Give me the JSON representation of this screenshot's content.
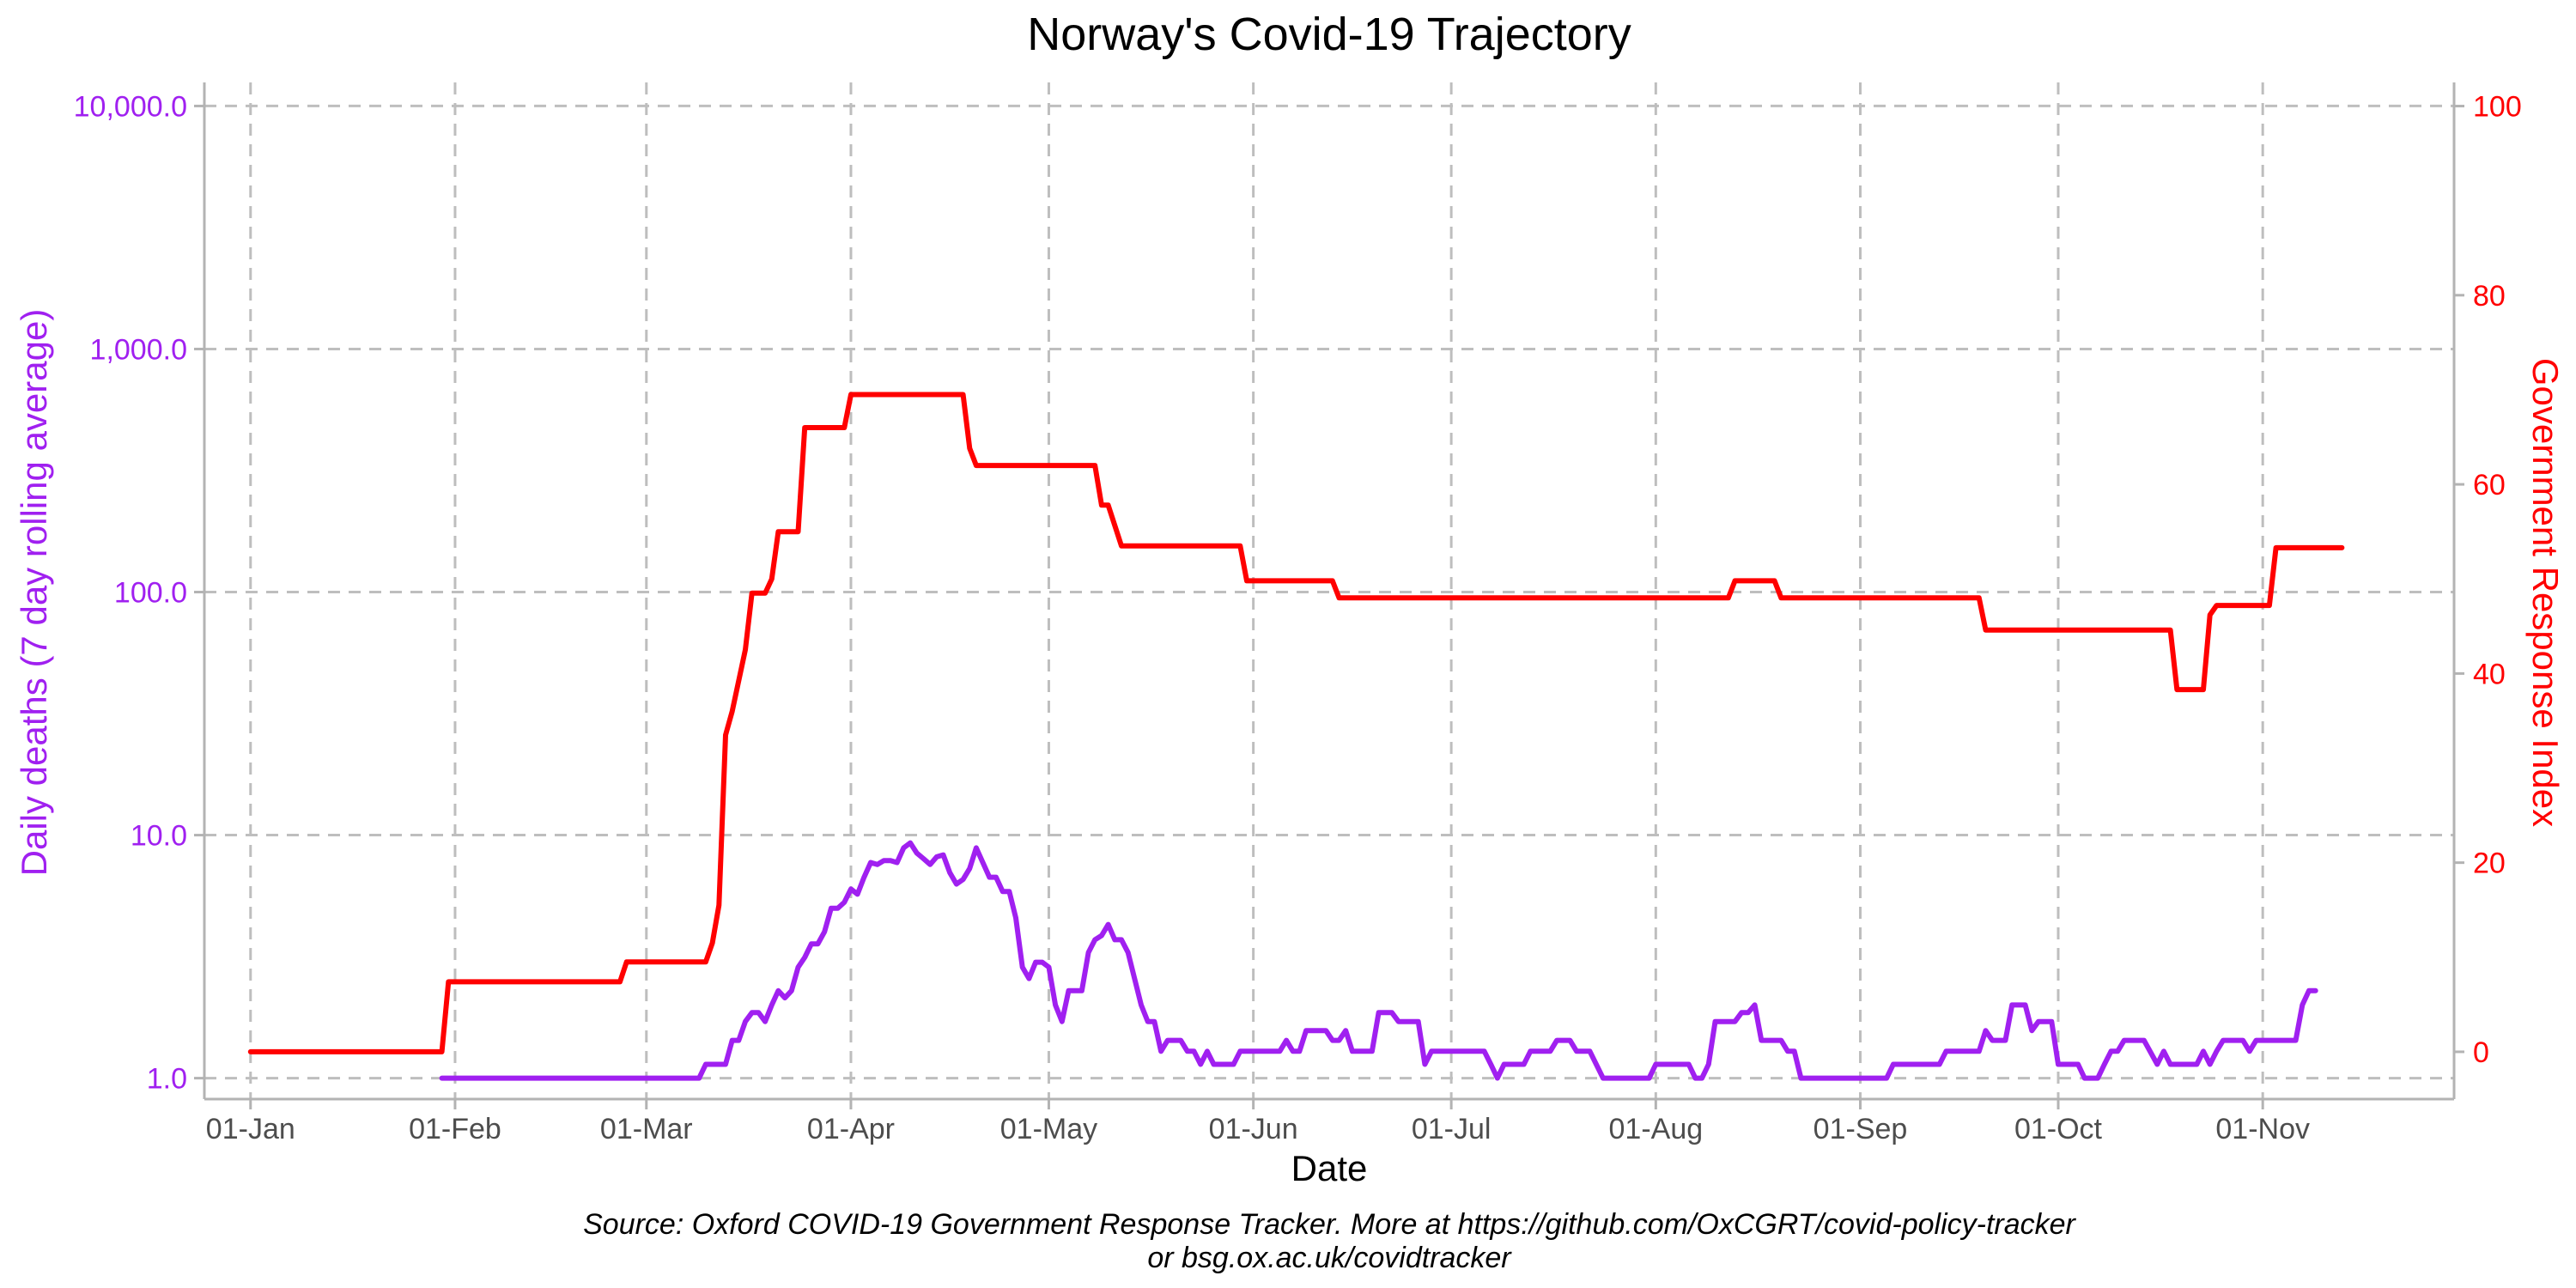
{
  "chart_data": {
    "type": "line",
    "title": "Norway's Covid-19 Trajectory",
    "xlabel": "Date",
    "ylabel_left": "Daily deaths (7 day rolling average)",
    "ylabel_right": "Government Response Index",
    "caption_line1": "Source: Oxford COVID-19 Government Response Tracker. More at https://github.com/OxCGRT/covid-policy-tracker",
    "caption_line2": "or bsg.ox.ac.uk/covidtracker",
    "x_ticks": [
      "01-Jan",
      "01-Feb",
      "01-Mar",
      "01-Apr",
      "01-May",
      "01-Jun",
      "01-Jul",
      "01-Aug",
      "01-Sep",
      "01-Oct",
      "01-Nov"
    ],
    "xlim": [
      "2019-12-25",
      "2020-11-30"
    ],
    "y_left_scale": "log10",
    "y_left_lim": [
      0.82,
      12500
    ],
    "y_left_ticks": [
      1,
      10,
      100,
      1000,
      10000
    ],
    "y_left_tick_labels": [
      "1.0",
      "10.0",
      "100.0",
      "1,000.0",
      "10,000.0"
    ],
    "y_right_lim": [
      -5,
      102.5
    ],
    "y_right_ticks": [
      0,
      20,
      40,
      60,
      80,
      100
    ],
    "y_right_tick_labels": [
      "0",
      "20",
      "40",
      "60",
      "80",
      "100"
    ],
    "grid": true,
    "colors": {
      "deaths": "#a020f0",
      "index": "#ff0000",
      "grid": "#bebebe",
      "axis": "#b3b3b3"
    },
    "series": [
      {
        "axis": "right",
        "color": "#ff0000",
        "points": [
          [
            "2020-01-01",
            0
          ],
          [
            "2020-01-30",
            0
          ],
          [
            "2020-01-31",
            7.4
          ],
          [
            "2020-02-26",
            7.4
          ],
          [
            "2020-02-27",
            9.5
          ],
          [
            "2020-03-10",
            9.5
          ],
          [
            "2020-03-11",
            11.5
          ],
          [
            "2020-03-12",
            15.5
          ],
          [
            "2020-03-13",
            33.5
          ],
          [
            "2020-03-14",
            36
          ],
          [
            "2020-03-16",
            42.5
          ],
          [
            "2020-03-17",
            48.5
          ],
          [
            "2020-03-19",
            48.5
          ],
          [
            "2020-03-20",
            50
          ],
          [
            "2020-03-21",
            55
          ],
          [
            "2020-03-24",
            55
          ],
          [
            "2020-03-25",
            66
          ],
          [
            "2020-03-31",
            66
          ],
          [
            "2020-04-01",
            69.5
          ],
          [
            "2020-04-18",
            69.5
          ],
          [
            "2020-04-19",
            63.8
          ],
          [
            "2020-04-20",
            62
          ],
          [
            "2020-05-08",
            62
          ],
          [
            "2020-05-09",
            57.8
          ],
          [
            "2020-05-10",
            57.8
          ],
          [
            "2020-05-12",
            53.5
          ],
          [
            "2020-05-30",
            53.5
          ],
          [
            "2020-05-31",
            49.8
          ],
          [
            "2020-06-13",
            49.8
          ],
          [
            "2020-06-14",
            48
          ],
          [
            "2020-08-12",
            48
          ],
          [
            "2020-08-13",
            49.8
          ],
          [
            "2020-08-19",
            49.8
          ],
          [
            "2020-08-20",
            48
          ],
          [
            "2020-09-19",
            48
          ],
          [
            "2020-09-20",
            44.6
          ],
          [
            "2020-10-18",
            44.6
          ],
          [
            "2020-10-19",
            38.3
          ],
          [
            "2020-10-23",
            38.3
          ],
          [
            "2020-10-24",
            46.2
          ],
          [
            "2020-10-25",
            47.2
          ],
          [
            "2020-11-02",
            47.2
          ],
          [
            "2020-11-03",
            53.3
          ],
          [
            "2020-11-13",
            53.3
          ]
        ]
      },
      {
        "axis": "left",
        "color": "#a020f0",
        "points": [
          [
            "2020-01-30",
            1.0
          ],
          [
            "2020-03-09",
            1.0
          ],
          [
            "2020-03-10",
            1.14
          ],
          [
            "2020-03-13",
            1.14
          ],
          [
            "2020-03-14",
            1.43
          ],
          [
            "2020-03-15",
            1.43
          ],
          [
            "2020-03-16",
            1.71
          ],
          [
            "2020-03-17",
            1.86
          ],
          [
            "2020-03-18",
            1.86
          ],
          [
            "2020-03-19",
            1.71
          ],
          [
            "2020-03-20",
            2.0
          ],
          [
            "2020-03-21",
            2.29
          ],
          [
            "2020-03-22",
            2.14
          ],
          [
            "2020-03-23",
            2.29
          ],
          [
            "2020-03-24",
            2.86
          ],
          [
            "2020-03-25",
            3.14
          ],
          [
            "2020-03-26",
            3.57
          ],
          [
            "2020-03-27",
            3.57
          ],
          [
            "2020-03-28",
            4.0
          ],
          [
            "2020-03-29",
            5.0
          ],
          [
            "2020-03-30",
            5.0
          ],
          [
            "2020-03-31",
            5.29
          ],
          [
            "2020-04-01",
            6.0
          ],
          [
            "2020-04-02",
            5.71
          ],
          [
            "2020-04-03",
            6.71
          ],
          [
            "2020-04-04",
            7.71
          ],
          [
            "2020-04-05",
            7.57
          ],
          [
            "2020-04-06",
            7.86
          ],
          [
            "2020-04-07",
            7.86
          ],
          [
            "2020-04-08",
            7.71
          ],
          [
            "2020-04-09",
            8.86
          ],
          [
            "2020-04-10",
            9.29
          ],
          [
            "2020-04-11",
            8.43
          ],
          [
            "2020-04-12",
            8.0
          ],
          [
            "2020-04-13",
            7.57
          ],
          [
            "2020-04-14",
            8.14
          ],
          [
            "2020-04-15",
            8.29
          ],
          [
            "2020-04-16",
            7.0
          ],
          [
            "2020-04-17",
            6.29
          ],
          [
            "2020-04-18",
            6.57
          ],
          [
            "2020-04-19",
            7.29
          ],
          [
            "2020-04-20",
            8.86
          ],
          [
            "2020-04-21",
            7.71
          ],
          [
            "2020-04-22",
            6.71
          ],
          [
            "2020-04-23",
            6.71
          ],
          [
            "2020-04-24",
            5.86
          ],
          [
            "2020-04-25",
            5.86
          ],
          [
            "2020-04-26",
            4.57
          ],
          [
            "2020-04-27",
            2.86
          ],
          [
            "2020-04-28",
            2.57
          ],
          [
            "2020-04-29",
            3.0
          ],
          [
            "2020-04-30",
            3.0
          ],
          [
            "2020-05-01",
            2.86
          ],
          [
            "2020-05-02",
            2.0
          ],
          [
            "2020-05-03",
            1.71
          ],
          [
            "2020-05-04",
            2.29
          ],
          [
            "2020-05-05",
            2.29
          ],
          [
            "2020-05-06",
            2.29
          ],
          [
            "2020-05-07",
            3.29
          ],
          [
            "2020-05-08",
            3.71
          ],
          [
            "2020-05-09",
            3.86
          ],
          [
            "2020-05-10",
            4.29
          ],
          [
            "2020-05-11",
            3.71
          ],
          [
            "2020-05-12",
            3.71
          ],
          [
            "2020-05-13",
            3.29
          ],
          [
            "2020-05-14",
            2.57
          ],
          [
            "2020-05-15",
            2.0
          ],
          [
            "2020-05-16",
            1.71
          ],
          [
            "2020-05-17",
            1.71
          ],
          [
            "2020-05-18",
            1.29
          ],
          [
            "2020-05-19",
            1.43
          ],
          [
            "2020-05-20",
            1.43
          ],
          [
            "2020-05-21",
            1.43
          ],
          [
            "2020-05-22",
            1.29
          ],
          [
            "2020-05-23",
            1.29
          ],
          [
            "2020-05-24",
            1.14
          ],
          [
            "2020-05-25",
            1.29
          ],
          [
            "2020-05-26",
            1.14
          ],
          [
            "2020-05-27",
            1.14
          ],
          [
            "2020-05-28",
            1.14
          ],
          [
            "2020-05-29",
            1.14
          ],
          [
            "2020-05-30",
            1.29
          ],
          [
            "2020-05-31",
            1.29
          ],
          [
            "2020-06-05",
            1.29
          ],
          [
            "2020-06-06",
            1.43
          ],
          [
            "2020-06-07",
            1.29
          ],
          [
            "2020-06-08",
            1.29
          ],
          [
            "2020-06-09",
            1.57
          ],
          [
            "2020-06-12",
            1.57
          ],
          [
            "2020-06-13",
            1.43
          ],
          [
            "2020-06-14",
            1.43
          ],
          [
            "2020-06-15",
            1.57
          ],
          [
            "2020-06-16",
            1.29
          ],
          [
            "2020-06-19",
            1.29
          ],
          [
            "2020-06-20",
            1.86
          ],
          [
            "2020-06-22",
            1.86
          ],
          [
            "2020-06-23",
            1.71
          ],
          [
            "2020-06-26",
            1.71
          ],
          [
            "2020-06-27",
            1.14
          ],
          [
            "2020-06-28",
            1.29
          ],
          [
            "2020-07-06",
            1.29
          ],
          [
            "2020-07-07",
            1.14
          ],
          [
            "2020-07-08",
            1.0
          ],
          [
            "2020-07-09",
            1.14
          ],
          [
            "2020-07-12",
            1.14
          ],
          [
            "2020-07-13",
            1.29
          ],
          [
            "2020-07-16",
            1.29
          ],
          [
            "2020-07-17",
            1.43
          ],
          [
            "2020-07-19",
            1.43
          ],
          [
            "2020-07-20",
            1.29
          ],
          [
            "2020-07-22",
            1.29
          ],
          [
            "2020-07-24",
            1.0
          ],
          [
            "2020-07-31",
            1.0
          ],
          [
            "2020-08-01",
            1.14
          ],
          [
            "2020-08-06",
            1.14
          ],
          [
            "2020-08-07",
            1.0
          ],
          [
            "2020-08-08",
            1.0
          ],
          [
            "2020-08-09",
            1.14
          ],
          [
            "2020-08-10",
            1.71
          ],
          [
            "2020-08-13",
            1.71
          ],
          [
            "2020-08-14",
            1.86
          ],
          [
            "2020-08-15",
            1.86
          ],
          [
            "2020-08-16",
            2.0
          ],
          [
            "2020-08-17",
            1.43
          ],
          [
            "2020-08-20",
            1.43
          ],
          [
            "2020-08-21",
            1.29
          ],
          [
            "2020-08-22",
            1.29
          ],
          [
            "2020-08-23",
            1.0
          ],
          [
            "2020-09-05",
            1.0
          ],
          [
            "2020-09-06",
            1.14
          ],
          [
            "2020-09-13",
            1.14
          ],
          [
            "2020-09-14",
            1.29
          ],
          [
            "2020-09-19",
            1.29
          ],
          [
            "2020-09-20",
            1.57
          ],
          [
            "2020-09-21",
            1.43
          ],
          [
            "2020-09-23",
            1.43
          ],
          [
            "2020-09-24",
            2.0
          ],
          [
            "2020-09-26",
            2.0
          ],
          [
            "2020-09-27",
            1.57
          ],
          [
            "2020-09-28",
            1.71
          ],
          [
            "2020-09-30",
            1.71
          ],
          [
            "2020-10-01",
            1.14
          ],
          [
            "2020-10-04",
            1.14
          ],
          [
            "2020-10-05",
            1.0
          ],
          [
            "2020-10-07",
            1.0
          ],
          [
            "2020-10-08",
            1.14
          ],
          [
            "2020-10-09",
            1.29
          ],
          [
            "2020-10-10",
            1.29
          ],
          [
            "2020-10-11",
            1.43
          ],
          [
            "2020-10-14",
            1.43
          ],
          [
            "2020-10-16",
            1.14
          ],
          [
            "2020-10-17",
            1.29
          ],
          [
            "2020-10-18",
            1.14
          ],
          [
            "2020-10-22",
            1.14
          ],
          [
            "2020-10-23",
            1.29
          ],
          [
            "2020-10-24",
            1.14
          ],
          [
            "2020-10-25",
            1.29
          ],
          [
            "2020-10-26",
            1.43
          ],
          [
            "2020-10-29",
            1.43
          ],
          [
            "2020-10-30",
            1.29
          ],
          [
            "2020-10-31",
            1.43
          ],
          [
            "2020-11-06",
            1.43
          ],
          [
            "2020-11-07",
            2.0
          ],
          [
            "2020-11-08",
            2.29
          ],
          [
            "2020-11-09",
            2.29
          ]
        ]
      }
    ]
  }
}
